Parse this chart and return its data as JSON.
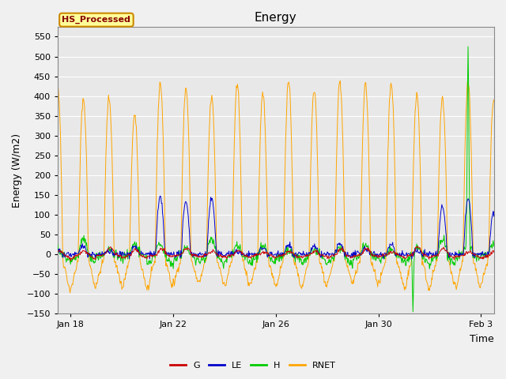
{
  "title": "Energy",
  "ylabel": "Energy (W/m2)",
  "xlabel": "Time",
  "ylim": [
    -150,
    575
  ],
  "yticks": [
    -150,
    -100,
    -50,
    0,
    50,
    100,
    150,
    200,
    250,
    300,
    350,
    400,
    450,
    500,
    550
  ],
  "xtick_labels": [
    "Jan 18",
    "Jan 22",
    "Jan 26",
    "Jan 30",
    "Feb 3"
  ],
  "xtick_pos": [
    1,
    5,
    9,
    13,
    17
  ],
  "xlim": [
    0.5,
    17.5
  ],
  "legend_label": "HS_Processed",
  "legend_entries": [
    "G",
    "LE",
    "H",
    "RNET"
  ],
  "legend_colors": [
    "#cc0000",
    "#0000cc",
    "#00cc00",
    "#ffa500"
  ],
  "line_colors": {
    "G": "#cc0000",
    "LE": "#0000cc",
    "H": "#00cc00",
    "RNET": "#ffa500"
  },
  "figure_bg_color": "#f0f0f0",
  "plot_bg_color": "#e8e8e8",
  "grid_color": "#ffffff",
  "title_fontsize": 11,
  "axis_label_fontsize": 9,
  "tick_fontsize": 8,
  "n_days": 18,
  "seed": 42,
  "annotation_box_facecolor": "#ffff99",
  "annotation_text_color": "#880000",
  "annotation_border_color": "#cc8800",
  "figsize": [
    6.4,
    4.8
  ],
  "dpi": 100
}
